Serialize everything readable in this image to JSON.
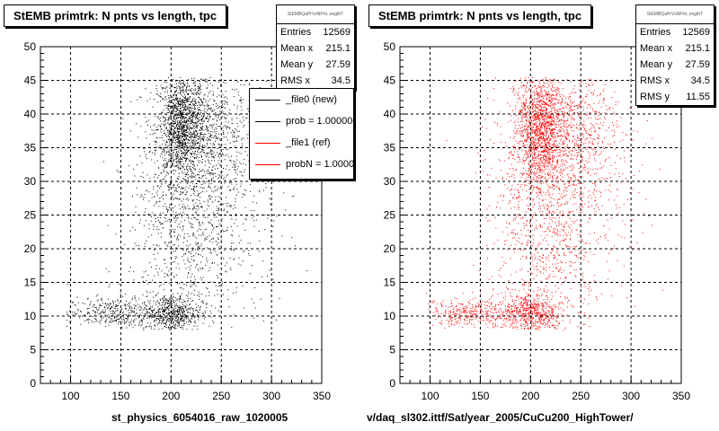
{
  "chart_data": [
    {
      "type": "scatter",
      "title": "StEMB primtrk: N pnts vs length, tpc",
      "xlabel": "st_physics_6054016_raw_1020005",
      "xlim": [
        70,
        350
      ],
      "ylim": [
        0,
        50
      ],
      "x_ticks": [
        "100",
        "150",
        "200",
        "250",
        "300",
        "350"
      ],
      "y_ticks": [
        "0",
        "5",
        "10",
        "15",
        "20",
        "25",
        "30",
        "35",
        "40",
        "45",
        "50"
      ],
      "grid": true,
      "marker_color": "#000000",
      "stats": {
        "header": "StEMBQaPrVsNPnt..engthT",
        "rows": [
          {
            "label": "Entries",
            "value": "12569"
          },
          {
            "label": "Mean x",
            "value": "215.1"
          },
          {
            "label": "Mean y",
            "value": "27.59"
          },
          {
            "label": "RMS x",
            "value": "34.5"
          }
        ]
      },
      "legend": [
        {
          "label": "_file0 (new)",
          "color": "#000000"
        },
        {
          "label": "prob = 1.000000",
          "color": "#000000"
        },
        {
          "label": "_file1 (ref)",
          "color": "#ff0000"
        },
        {
          "label": "probN = 1.000000",
          "color": "#ff0000"
        }
      ],
      "clusters": [
        {
          "x": 210,
          "y": 38,
          "sx": 12,
          "sy": 4,
          "n": 1400
        },
        {
          "x": 200,
          "y": 10.5,
          "sx": 15,
          "sy": 1.4,
          "n": 600
        },
        {
          "x": 140,
          "y": 10.5,
          "sx": 22,
          "sy": 1.2,
          "n": 350
        },
        {
          "x": 215,
          "y": 25,
          "sx": 28,
          "sy": 9,
          "n": 1000
        },
        {
          "x": 240,
          "y": 38,
          "sx": 22,
          "sy": 5,
          "n": 600
        },
        {
          "x": 260,
          "y": 30,
          "sx": 30,
          "sy": 8,
          "n": 250
        }
      ]
    },
    {
      "type": "scatter",
      "title": "StEMB primtrk: N pnts vs length, tpc",
      "xlabel": "v/daq_sl302.ittf/Sat/year_2005/CuCu200_HighTower/",
      "xlim": [
        70,
        350
      ],
      "ylim": [
        0,
        50
      ],
      "x_ticks": [
        "100",
        "150",
        "200",
        "250",
        "300",
        "350"
      ],
      "y_ticks": [
        "0",
        "5",
        "10",
        "15",
        "20",
        "25",
        "30",
        "35",
        "40",
        "45",
        "50"
      ],
      "grid": true,
      "marker_color": "#ff0000",
      "stats": {
        "header": "StEMBQaPrVsNPnt..engthT",
        "rows": [
          {
            "label": "Entries",
            "value": "12569"
          },
          {
            "label": "Mean x",
            "value": "215.1"
          },
          {
            "label": "Mean y",
            "value": "27.59"
          },
          {
            "label": "RMS x",
            "value": "34.5"
          },
          {
            "label": "RMS y",
            "value": "11.55"
          }
        ]
      },
      "clusters": [
        {
          "x": 210,
          "y": 38,
          "sx": 12,
          "sy": 4,
          "n": 1400
        },
        {
          "x": 200,
          "y": 10.5,
          "sx": 15,
          "sy": 1.4,
          "n": 600
        },
        {
          "x": 140,
          "y": 10.5,
          "sx": 22,
          "sy": 1.2,
          "n": 350
        },
        {
          "x": 215,
          "y": 25,
          "sx": 28,
          "sy": 9,
          "n": 1000
        },
        {
          "x": 240,
          "y": 38,
          "sx": 22,
          "sy": 5,
          "n": 600
        },
        {
          "x": 260,
          "y": 30,
          "sx": 30,
          "sy": 8,
          "n": 250
        }
      ]
    }
  ]
}
